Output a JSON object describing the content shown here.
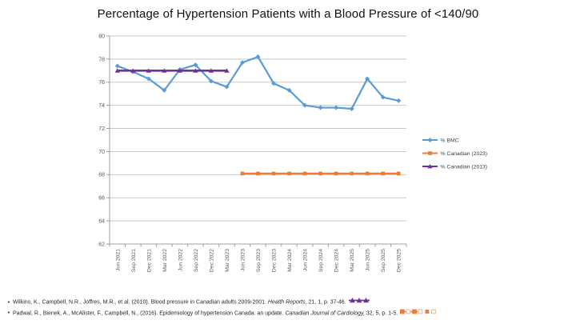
{
  "slide": {
    "title": "Percentage of Hypertension Patients with a Blood Pressure of <140/90"
  },
  "chart_data": {
    "type": "line",
    "title": "Percentage of Hypertension Patients with a Blood Pressure of <140/90",
    "categories": [
      "Jun 2021",
      "Sep 2021",
      "Dec 2021",
      "Mar 2022",
      "Jun 2022",
      "Sep 2022",
      "Dec 2022",
      "Mar 2023",
      "Jun 2023",
      "Sep 2023",
      "Dec 2023",
      "Mar 2024",
      "Jun 2024",
      "Sep 2024",
      "Dec 2024",
      "Mar 2025",
      "Jun 2025",
      "Sep 2025",
      "Dec 2025"
    ],
    "series": [
      {
        "name": "% BMC",
        "color": "#5B9BD5",
        "marker": "diamond",
        "line_width": 2.2,
        "values": [
          77.4,
          76.9,
          76.3,
          75.3,
          77.1,
          77.5,
          76.1,
          75.6,
          77.7,
          78.2,
          75.9,
          75.3,
          74.0,
          73.8,
          73.8,
          73.7,
          76.3,
          74.7,
          74.4
        ]
      },
      {
        "name": "% Canadian (2023)",
        "color": "#ED7D31",
        "marker": "square",
        "line_width": 2.4,
        "values": [
          null,
          null,
          null,
          null,
          null,
          null,
          null,
          null,
          68.1,
          68.1,
          68.1,
          68.1,
          68.1,
          68.1,
          68.1,
          68.1,
          68.1,
          68.1,
          68.1
        ]
      },
      {
        "name": "% Canadian (2013)",
        "color": "#7030A0",
        "marker": "triangle",
        "line_width": 2.6,
        "values": [
          77,
          77,
          77,
          77,
          77,
          77,
          77,
          77,
          null,
          null,
          null,
          null,
          null,
          null,
          null,
          null,
          null,
          null,
          null
        ]
      }
    ],
    "ylim": [
      62,
      80
    ],
    "ytick_step": 2,
    "grid": true,
    "legend_position": "right",
    "xlabel": "",
    "ylabel": ""
  },
  "citations": [
    {
      "bullet": "•",
      "pre": "Wilkins, K., Campbell, N.R., Joffres, M.R., et al. (2010). Blood pressure in Canadian adults 2009-2001. ",
      "italic": "Health Reports",
      "post": ", 21, 1, p. 37-46.",
      "icon": "purple-triangle-line-icon"
    },
    {
      "bullet": "•",
      "pre": "Padwal, R., Bienek, A., McAlister, F., Campbell, N., (2016). Epidemiology of hypertension Canada: an update. ",
      "italic": "Canadian Journal of Cardiology,",
      "post": " 32, 5, p. 1-5.",
      "icon": "orange-square-line-icon"
    }
  ],
  "colors": {
    "grid": "#C9C9C9",
    "axis": "#A0A0A0",
    "tick_label": "#595959",
    "legend_text": "#3A3A3A",
    "pale_orange": "#F4B183"
  }
}
